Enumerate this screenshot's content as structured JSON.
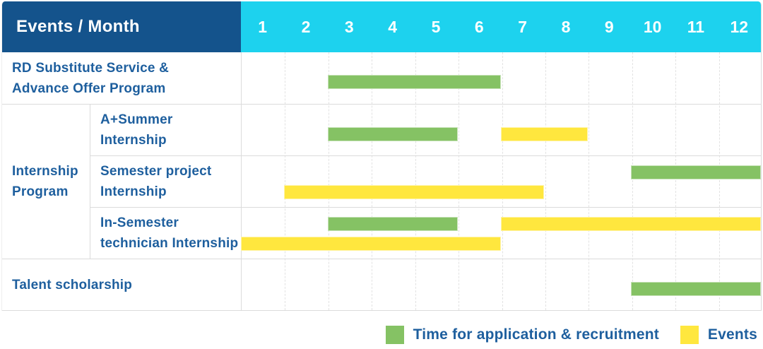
{
  "table": {
    "corner_title": "Events / Month",
    "months": [
      "1",
      "2",
      "3",
      "4",
      "5",
      "6",
      "7",
      "8",
      "9",
      "10",
      "11",
      "12"
    ]
  },
  "colors": {
    "header_bg": "#14538C",
    "months_bg": "#1DD2EE",
    "label_text": "#1E5F9E",
    "application_green": "#85C264",
    "events_yellow": "#FFE73E",
    "grid_line": "#DBDBDB"
  },
  "groups": [
    {
      "label_lines": [
        "Internship",
        "Program"
      ],
      "start_row": 1,
      "row_count": 3
    }
  ],
  "chart_data": {
    "type": "gantt",
    "x_axis": {
      "label": "Month",
      "ticks": [
        1,
        2,
        3,
        4,
        5,
        6,
        7,
        8,
        9,
        10,
        11,
        12
      ],
      "range": [
        1,
        12
      ]
    },
    "series": {
      "application": {
        "name": "Time for application & recruitment",
        "color": "#85C264"
      },
      "events": {
        "name": "Events",
        "color": "#FFE73E"
      }
    },
    "rows": [
      {
        "label_lines": [
          "RD Substitute Service &",
          "Advance Offer Program"
        ],
        "group": null,
        "lanes": 1,
        "bars": [
          {
            "series": "application",
            "start_month": 3,
            "end_month": 6,
            "lane": 0
          }
        ]
      },
      {
        "label_lines": [
          "A+Summer",
          "Internship"
        ],
        "group": "Internship Program",
        "lanes": 1,
        "bars": [
          {
            "series": "application",
            "start_month": 3,
            "end_month": 5,
            "lane": 0
          },
          {
            "series": "events",
            "start_month": 7,
            "end_month": 8,
            "lane": 0
          }
        ]
      },
      {
        "label_lines": [
          "Semester project",
          "Internship"
        ],
        "group": "Internship Program",
        "lanes": 2,
        "bars": [
          {
            "series": "application",
            "start_month": 10,
            "end_month": 12,
            "lane": 0
          },
          {
            "series": "events",
            "start_month": 2,
            "end_month": 7,
            "lane": 1
          }
        ]
      },
      {
        "label_lines": [
          "In-Semester",
          "technician Internship"
        ],
        "group": "Internship Program",
        "lanes": 2,
        "bars": [
          {
            "series": "application",
            "start_month": 3,
            "end_month": 5,
            "lane": 0
          },
          {
            "series": "events",
            "start_month": 7,
            "end_month": 12,
            "lane": 0
          },
          {
            "series": "events",
            "start_month": 1,
            "end_month": 6,
            "lane": 1
          }
        ]
      },
      {
        "label_lines": [
          "Talent scholarship"
        ],
        "group": null,
        "lanes": 1,
        "bars": [
          {
            "series": "application",
            "start_month": 10,
            "end_month": 12,
            "lane": 0
          }
        ]
      }
    ]
  },
  "legend": [
    {
      "label": "Time for application & recruitment",
      "series": "application"
    },
    {
      "label": "Events",
      "series": "events"
    }
  ]
}
